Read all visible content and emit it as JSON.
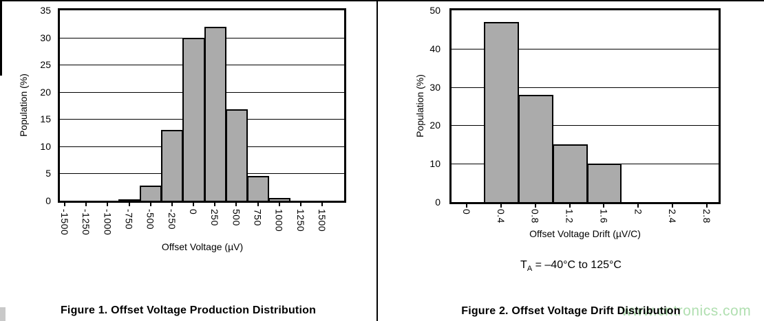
{
  "watermark": {
    "text": "www.cntronics.com",
    "color": "#a8dca8"
  },
  "figure1": {
    "caption": "Figure 1. Offset Voltage Production Distribution"
  },
  "figure2": {
    "caption": "Figure 2. Offset Voltage Drift Distribution",
    "note": {
      "base": "T",
      "subscript": "A",
      "rest": " = –40°C to 125°C"
    }
  },
  "chart_data": [
    {
      "type": "bar",
      "title": "Offset Voltage Production Distribution",
      "xlabel": "Offset Voltage (µV)",
      "ylabel": "Population (%)",
      "categories": [
        "-1500",
        "-1250",
        "-1000",
        "-750",
        "-500",
        "-250",
        "0",
        "250",
        "500",
        "750",
        "1000",
        "1250",
        "1500"
      ],
      "values": [
        0,
        0,
        0,
        0.3,
        2.8,
        13,
        30,
        32,
        16.8,
        4.5,
        0.5,
        0,
        0
      ],
      "ylim": [
        0,
        35
      ],
      "yticks": [
        0,
        5,
        10,
        15,
        20,
        25,
        30,
        35
      ],
      "grid": true,
      "legend": "none",
      "bar_color": "#ababab"
    },
    {
      "type": "bar",
      "title": "Offset Voltage Drift Distribution",
      "xlabel": "Offset Voltage Drift (µV/C)",
      "ylabel": "Population (%)",
      "categories": [
        "0",
        "0.4",
        "0.8",
        "1.2",
        "1.6",
        "2",
        "2.4",
        "2.8"
      ],
      "values": [
        0,
        47,
        28,
        15,
        10,
        0,
        0,
        0
      ],
      "ylim": [
        0,
        50
      ],
      "yticks": [
        0,
        10,
        20,
        30,
        40,
        50
      ],
      "grid": true,
      "legend": "none",
      "bar_color": "#ababab",
      "condition": "TA = –40°C to 125°C"
    }
  ]
}
